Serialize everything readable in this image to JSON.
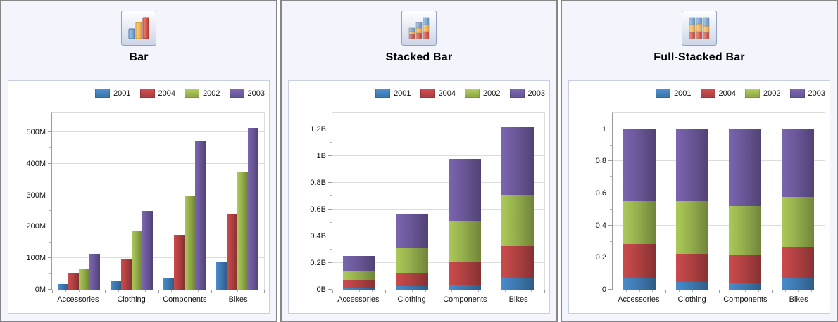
{
  "panels": [
    {
      "icon": "bar-chart-icon"
    },
    {
      "icon": "stacked-bar-chart-icon"
    },
    {
      "icon": "full-stacked-bar-chart-icon"
    }
  ],
  "chart_data": [
    {
      "title": "Bar",
      "type": "bar",
      "legend_position": "top-right",
      "grid": "horizontal",
      "categories": [
        "Accessories",
        "Clothing",
        "Components",
        "Bikes"
      ],
      "series": [
        {
          "name": "2001",
          "color": "#3e79b0",
          "values": [
            18,
            27,
            38,
            88
          ]
        },
        {
          "name": "2004",
          "color": "#b04142",
          "values": [
            54,
            98,
            175,
            240
          ]
        },
        {
          "name": "2002",
          "color": "#94ae4c",
          "values": [
            68,
            187,
            297,
            375
          ]
        },
        {
          "name": "2003",
          "color": "#6a5798",
          "values": [
            113,
            251,
            470,
            513
          ]
        }
      ],
      "value_unit": "M",
      "ylim": [
        0,
        560
      ],
      "y_ticks": [
        {
          "label": "0M",
          "value": 0
        },
        {
          "label": "100M",
          "value": 100
        },
        {
          "label": "200M",
          "value": 200
        },
        {
          "label": "300M",
          "value": 300
        },
        {
          "label": "400M",
          "value": 400
        },
        {
          "label": "500M",
          "value": 500
        }
      ]
    },
    {
      "title": "Stacked Bar",
      "type": "stacked-bar",
      "legend_position": "top-right",
      "grid": "horizontal",
      "categories": [
        "Accessories",
        "Clothing",
        "Components",
        "Bikes"
      ],
      "series": [
        {
          "name": "2001",
          "color": "#3e79b0",
          "values": [
            0.018,
            0.027,
            0.038,
            0.088
          ]
        },
        {
          "name": "2004",
          "color": "#b04142",
          "values": [
            0.054,
            0.098,
            0.175,
            0.24
          ]
        },
        {
          "name": "2002",
          "color": "#94ae4c",
          "values": [
            0.068,
            0.187,
            0.297,
            0.375
          ]
        },
        {
          "name": "2003",
          "color": "#6a5798",
          "values": [
            0.113,
            0.251,
            0.47,
            0.513
          ]
        }
      ],
      "value_unit": "B",
      "ylim": [
        0,
        1.32
      ],
      "y_ticks": [
        {
          "label": "0B",
          "value": 0
        },
        {
          "label": "0.2B",
          "value": 0.2
        },
        {
          "label": "0.4B",
          "value": 0.4
        },
        {
          "label": "0.6B",
          "value": 0.6
        },
        {
          "label": "0.8B",
          "value": 0.8
        },
        {
          "label": "1B",
          "value": 1.0
        },
        {
          "label": "1.2B",
          "value": 1.2
        }
      ]
    },
    {
      "title": "Full-Stacked Bar",
      "type": "full-stacked-bar",
      "legend_position": "top-right",
      "grid": "horizontal",
      "categories": [
        "Accessories",
        "Clothing",
        "Components",
        "Bikes"
      ],
      "series": [
        {
          "name": "2001",
          "color": "#3e79b0",
          "values": [
            0.071,
            0.048,
            0.039,
            0.072
          ]
        },
        {
          "name": "2004",
          "color": "#b04142",
          "values": [
            0.213,
            0.174,
            0.179,
            0.197
          ]
        },
        {
          "name": "2002",
          "color": "#94ae4c",
          "values": [
            0.269,
            0.332,
            0.303,
            0.309
          ]
        },
        {
          "name": "2003",
          "color": "#6a5798",
          "values": [
            0.447,
            0.446,
            0.479,
            0.422
          ]
        }
      ],
      "value_unit": "fraction",
      "ylim": [
        0,
        1.1
      ],
      "y_ticks": [
        {
          "label": "0",
          "value": 0
        },
        {
          "label": "0.2",
          "value": 0.2
        },
        {
          "label": "0.4",
          "value": 0.4
        },
        {
          "label": "0.6",
          "value": 0.6
        },
        {
          "label": "0.8",
          "value": 0.8
        },
        {
          "label": "1",
          "value": 1.0
        }
      ]
    }
  ]
}
